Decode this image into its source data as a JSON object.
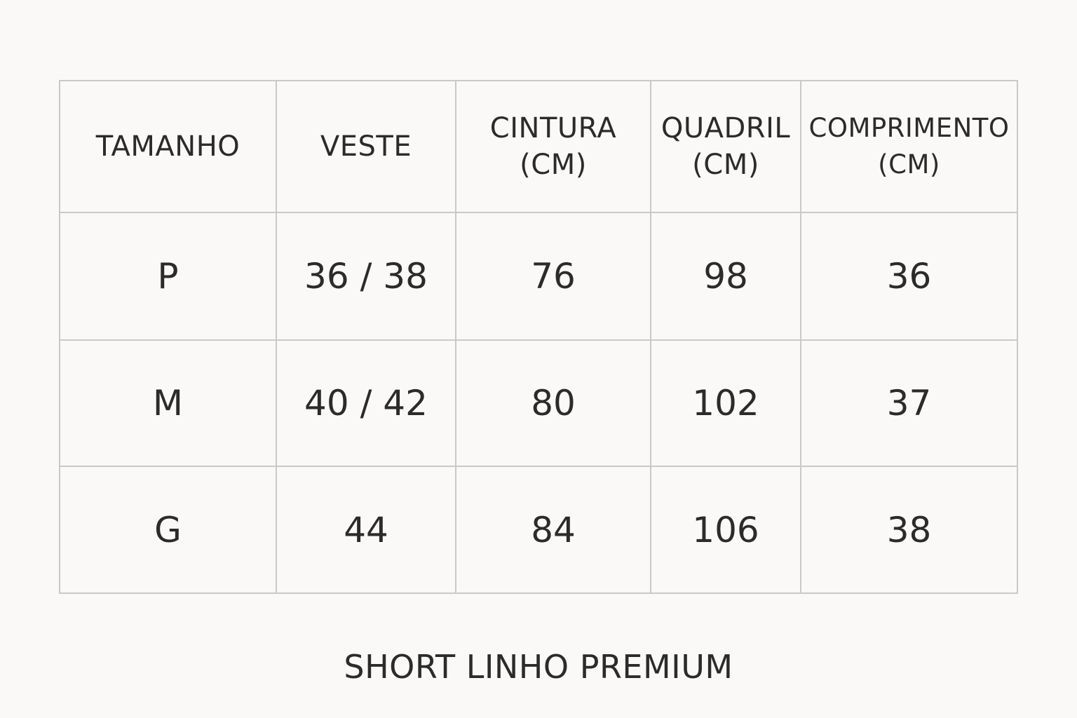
{
  "table": {
    "headers": [
      {
        "line1": "TAMANHO",
        "line2": ""
      },
      {
        "line1": "VESTE",
        "line2": ""
      },
      {
        "line1": "CINTURA",
        "line2": "(CM)"
      },
      {
        "line1": "QUADRIL",
        "line2": "(CM)"
      },
      {
        "line1": "COMPRIMENTO",
        "line2": "(CM)"
      }
    ],
    "rows": [
      [
        "P",
        "36 / 38",
        "76",
        "98",
        "36"
      ],
      [
        "M",
        "40 / 42",
        "80",
        "102",
        "37"
      ],
      [
        "G",
        "44",
        "84",
        "106",
        "38"
      ]
    ]
  },
  "title": "SHORT LINHO PREMIUM",
  "colors": {
    "background": "#faf9f7",
    "border": "#c9c9c9",
    "text": "#2b2b2b"
  }
}
